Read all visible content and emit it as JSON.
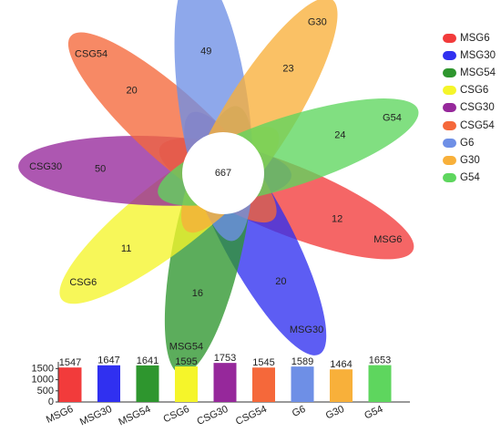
{
  "flower": {
    "core_value": "667",
    "petals": [
      {
        "name": "MSG6",
        "value": "12",
        "color": "#f23b3b"
      },
      {
        "name": "MSG30",
        "value": "20",
        "color": "#3030f0"
      },
      {
        "name": "MSG54",
        "value": "16",
        "color": "#2e962e"
      },
      {
        "name": "CSG6",
        "value": "11",
        "color": "#f5f52a"
      },
      {
        "name": "CSG30",
        "value": "50",
        "color": "#96289b"
      },
      {
        "name": "CSG54",
        "value": "20",
        "color": "#f5683a"
      },
      {
        "name": "G6",
        "value": "49",
        "color": "#6e8fe6"
      },
      {
        "name": "G30",
        "value": "23",
        "color": "#f8b03a"
      },
      {
        "name": "G54",
        "value": "24",
        "color": "#5ed65e"
      }
    ]
  },
  "legend": {
    "items": [
      {
        "label": "MSG6",
        "color": "#f23b3b"
      },
      {
        "label": "MSG30",
        "color": "#3030f0"
      },
      {
        "label": "MSG54",
        "color": "#2e962e"
      },
      {
        "label": "CSG6",
        "color": "#f5f52a"
      },
      {
        "label": "CSG30",
        "color": "#96289b"
      },
      {
        "label": "CSG54",
        "color": "#f5683a"
      },
      {
        "label": "G6",
        "color": "#6e8fe6"
      },
      {
        "label": "G30",
        "color": "#f8b03a"
      },
      {
        "label": "G54",
        "color": "#5ed65e"
      }
    ]
  },
  "chart_data": {
    "type": "bar",
    "categories": [
      "MSG6",
      "MSG30",
      "MSG54",
      "CSG6",
      "CSG30",
      "CSG54",
      "G6",
      "G30",
      "G54"
    ],
    "values": [
      1547,
      1647,
      1641,
      1595,
      1753,
      1545,
      1589,
      1464,
      1653
    ],
    "colors": [
      "#f23b3b",
      "#3030f0",
      "#2e962e",
      "#f5f52a",
      "#96289b",
      "#f5683a",
      "#6e8fe6",
      "#f8b03a",
      "#5ed65e"
    ],
    "yticks": [
      0,
      500,
      1000,
      1500
    ],
    "ylim": [
      0,
      1800
    ],
    "title": "",
    "xlabel": "",
    "ylabel": ""
  }
}
